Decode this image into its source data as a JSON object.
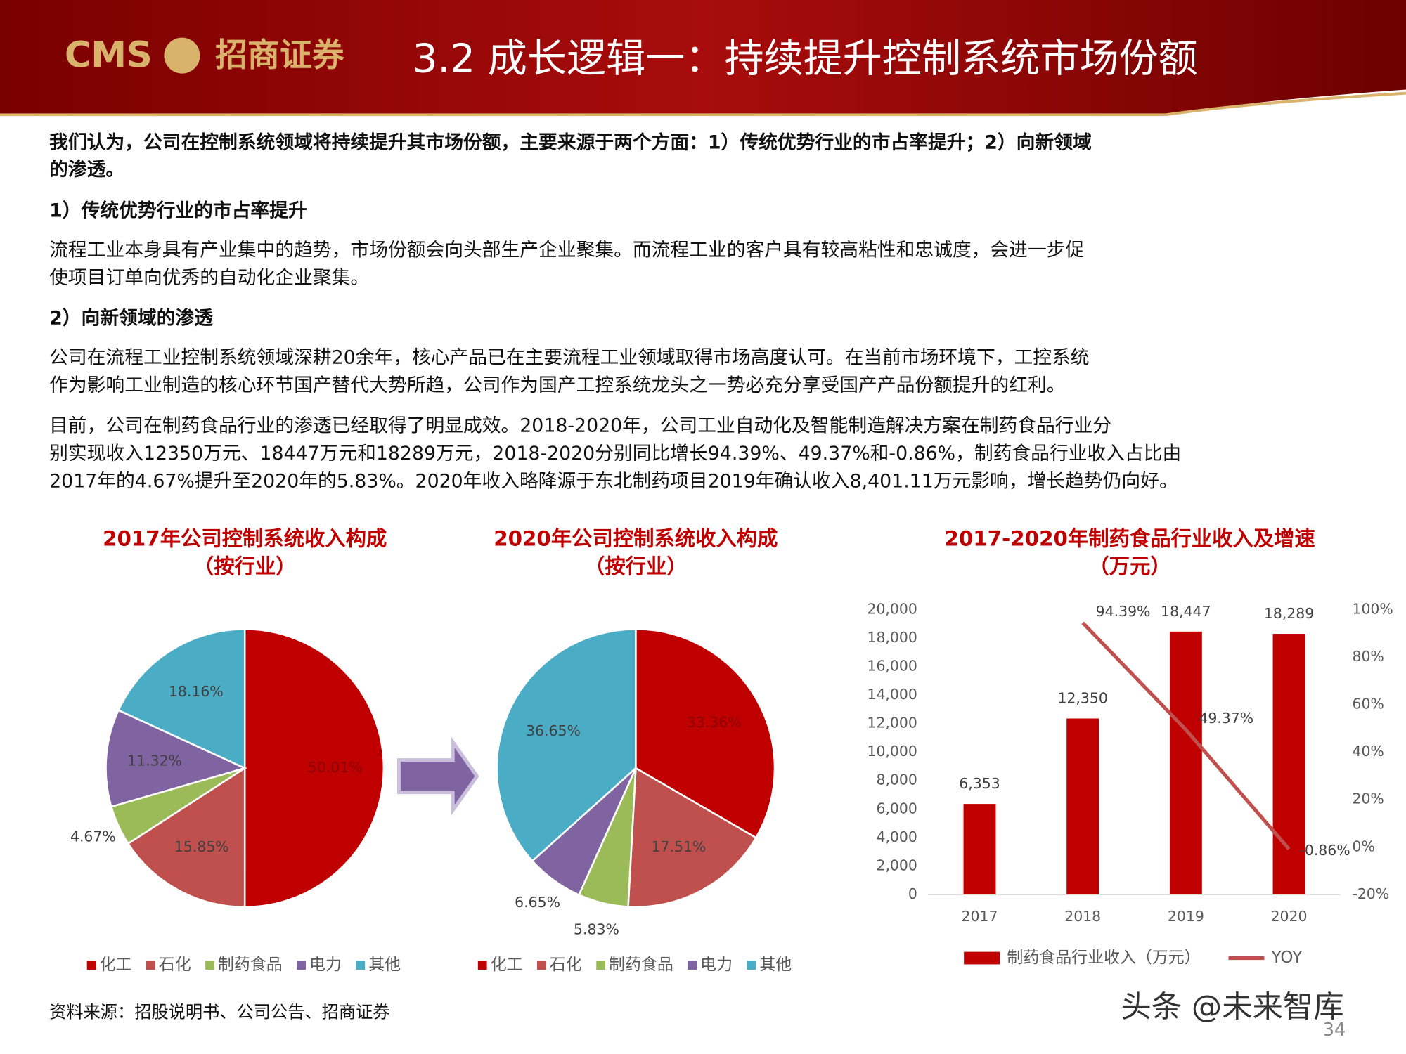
{
  "header": {
    "logo": "CMS",
    "brand": "招商证券",
    "title": "3.2 成长逻辑一：持续提升控制系统市场份额"
  },
  "body": {
    "intro": [
      "我们认为，公司在控制系统领域将持续提升其市场份额，主要来源于两个方面：1）传统优势行业的市占率提升；2）向新领域",
      "的渗透。"
    ],
    "heading_1": "1）传统优势行业的市占率提升",
    "paragraph_1": [
      "流程工业本身具有产业集中的趋势，市场份额会向头部生产企业聚集。而流程工业的客户具有较高粘性和忠诚度，会进一步促",
      "使项目订单向优秀的自动化企业聚集。"
    ],
    "heading_2": "2）向新领域的渗透",
    "paragraph_2": [
      "公司在流程工业控制系统领域深耕20余年，核心产品已在主要流程工业领域取得市场高度认可。在当前市场环境下，工控系统",
      "作为影响工业制造的核心环节国产替代大势所趋，公司作为国产工控系统龙头之一势必充分享受国产产品份额提升的红利。"
    ],
    "paragraph_3": [
      "目前，公司在制药食品行业的渗透已经取得了明显成效。2018-2020年，公司工业自动化及智能制造解决方案在制药食品行业分",
      "别实现收入12350万元、18447万元和18289万元，2018-2020分别同比增长94.39%、49.37%和-0.86%，制药食品行业收入占比由",
      "2017年的4.67%提升至2020年的5.83%。2020年收入略降源于东北制药项目2019年确认收入8,401.11万元影响，增长趋势仍向好。"
    ]
  },
  "chart_data": [
    {
      "type": "pie",
      "title": "2017年公司控制系统收入构成",
      "subtitle": "（按行业）",
      "categories": [
        "化工",
        "石化",
        "制药食品",
        "电力",
        "其他"
      ],
      "values": [
        50.01,
        15.85,
        4.67,
        11.32,
        18.16
      ],
      "value_labels": [
        "50.01%",
        "15.85%",
        "4.67%",
        "11.32%",
        "18.16%"
      ],
      "colors": [
        "#c00000",
        "#c0504d",
        "#9bbb59",
        "#8064a2",
        "#4bacc6"
      ],
      "legend": "bottom"
    },
    {
      "type": "pie",
      "title": "2020年公司控制系统收入构成",
      "subtitle": "（按行业）",
      "categories": [
        "化工",
        "石化",
        "制药食品",
        "电力",
        "其他"
      ],
      "values": [
        33.36,
        17.51,
        5.83,
        6.65,
        36.65
      ],
      "value_labels": [
        "33.36%",
        "17.51%",
        "5.83%",
        "6.65%",
        "36.65%"
      ],
      "colors": [
        "#c00000",
        "#c0504d",
        "#9bbb59",
        "#8064a2",
        "#4bacc6"
      ],
      "legend": "bottom"
    },
    {
      "type": "bar",
      "title": "2017-2020年制药食品行业收入及增速",
      "subtitle": "（万元）",
      "categories": [
        "2017",
        "2018",
        "2019",
        "2020"
      ],
      "series": [
        {
          "name": "制药食品行业收入（万元）",
          "color": "#c00000",
          "values": [
            6353,
            12350,
            18447,
            18289
          ],
          "value_labels": [
            "6,353",
            "12,350",
            "18,447",
            "18,289"
          ]
        },
        {
          "name": "YOY",
          "type": "line",
          "axis": "y2",
          "color": "#c0504d",
          "values": [
            null,
            94.39,
            49.37,
            -0.86
          ],
          "value_labels": [
            null,
            "94.39%",
            "49.37%",
            "-0.86%"
          ]
        }
      ],
      "ylim": [
        0,
        20000
      ],
      "yticks": [
        0,
        {
          "value": 2000,
          "label": "2,000"
        },
        {
          "value": 4000,
          "label": "4,000"
        },
        {
          "value": 6000,
          "label": "6,000"
        },
        {
          "value": 8000,
          "label": "8,000"
        },
        {
          "value": 10000,
          "label": "10,000"
        },
        {
          "value": 12000,
          "label": "12,000"
        },
        {
          "value": 14000,
          "label": "14,000"
        },
        {
          "value": 16000,
          "label": "16,000"
        },
        {
          "value": 18000,
          "label": "18,000"
        },
        {
          "value": 20000,
          "label": "20,000"
        }
      ],
      "y2lim": [
        -20,
        100
      ],
      "y2ticks": [
        {
          "value": -20,
          "label": "-20%"
        },
        {
          "value": 0,
          "label": "0%"
        },
        {
          "value": 20,
          "label": "20%"
        },
        {
          "value": 40,
          "label": "40%"
        },
        {
          "value": 60,
          "label": "60%"
        },
        {
          "value": 80,
          "label": "80%"
        },
        {
          "value": 100,
          "label": "100%"
        }
      ],
      "grid": false,
      "legend": "bottom"
    }
  ],
  "footer": {
    "source": "资料来源：招股说明书、公司公告、招商证券",
    "watermark": "头条 @未来智库",
    "page": "34"
  }
}
